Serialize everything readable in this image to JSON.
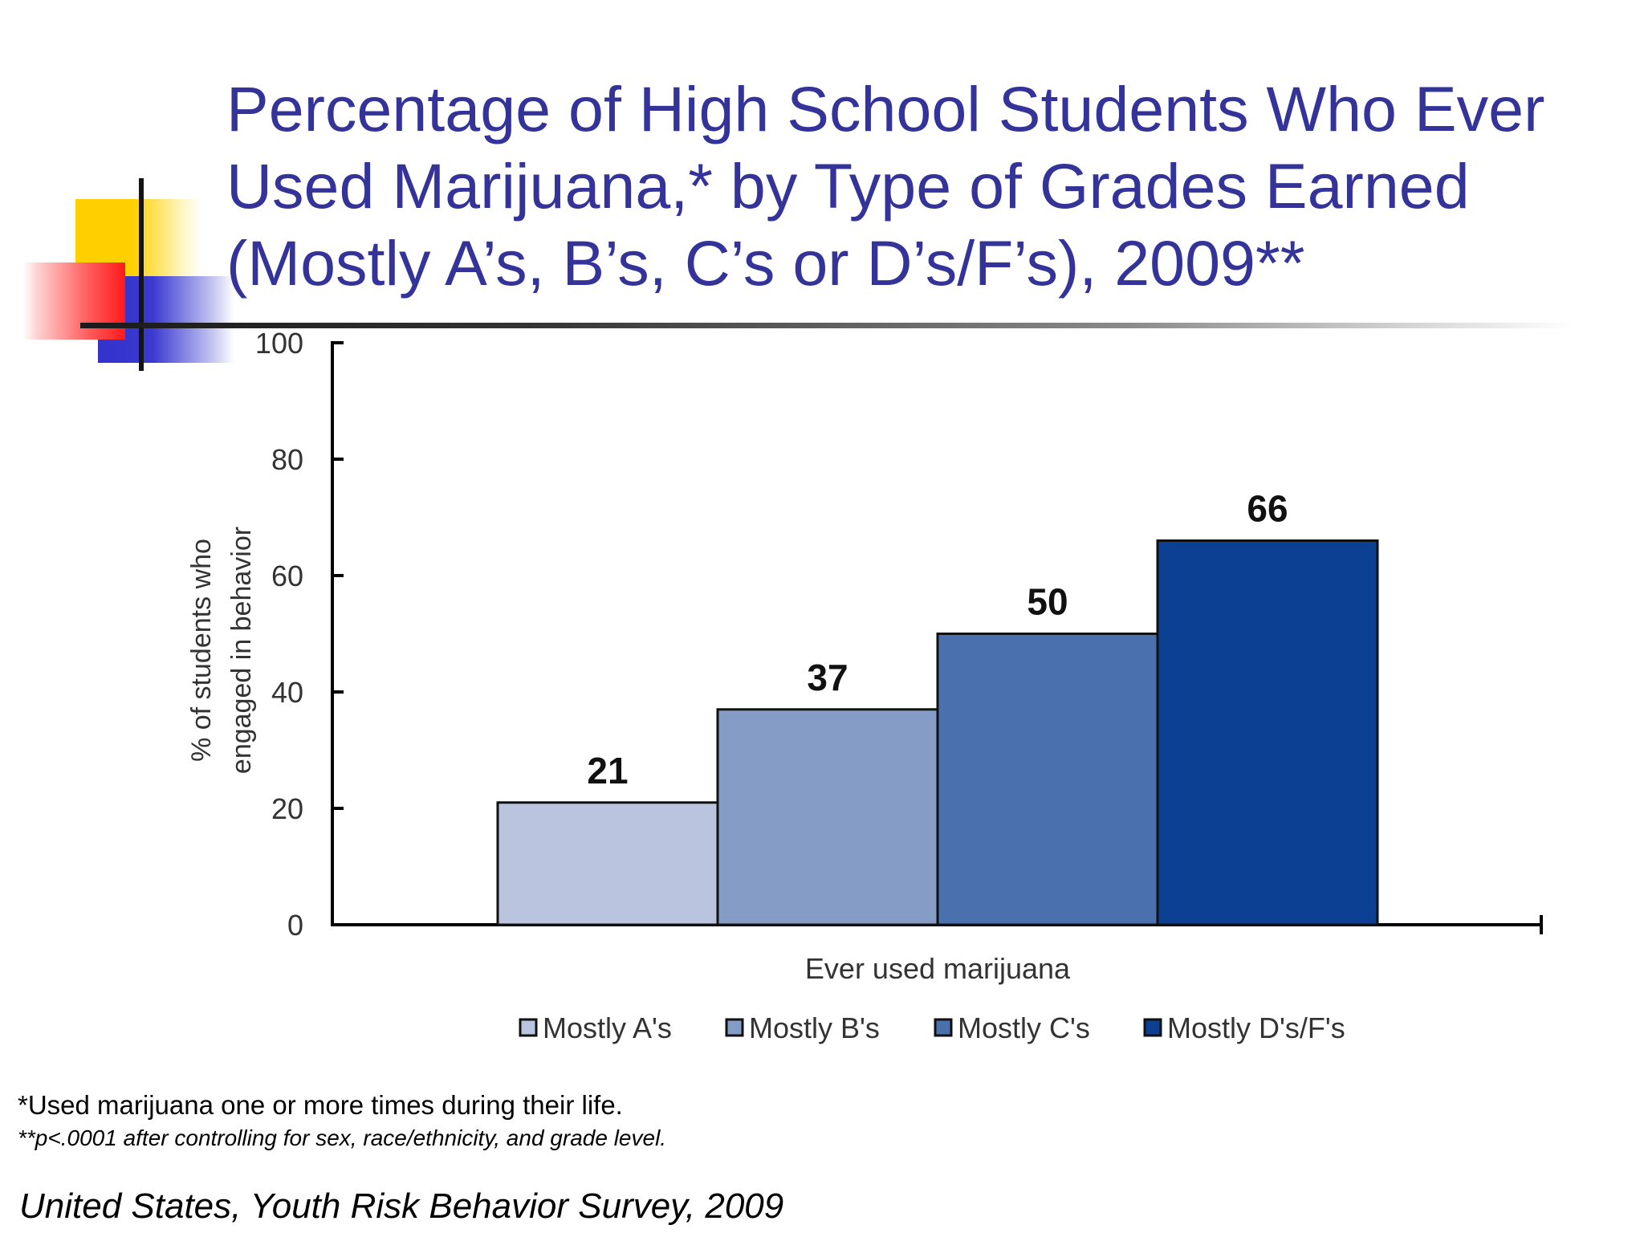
{
  "slide": {
    "title": "Percentage of High School Students Who Ever\nUsed Marijuana,* by Type of Grades Earned\n(Mostly A’s, B’s, C’s or D’s/F’s), 2009**",
    "footnote_1": "*Used marijuana one or more times during their life.",
    "footnote_2": "**p<.0001 after controlling for sex, race/ethnicity, and grade level.",
    "source": "United States, Youth Risk Behavior Survey, 2009"
  },
  "chart_data": {
    "type": "bar",
    "title": "",
    "categories": [
      "Ever used marijuana"
    ],
    "xlabel": "",
    "ylabel": "% of students who engaged in behavior",
    "ylabel_lines": [
      "% of students who",
      "engaged in behavior"
    ],
    "ylim": [
      0,
      100
    ],
    "yticks": [
      0,
      20,
      40,
      60,
      80,
      100
    ],
    "legend_position": "bottom",
    "series": [
      {
        "name": "Mostly A's",
        "values": [
          21
        ],
        "color": "#bbc4de"
      },
      {
        "name": "Mostly B's",
        "values": [
          37
        ],
        "color": "#859dc6"
      },
      {
        "name": "Mostly C's",
        "values": [
          50
        ],
        "color": "#4a70ae"
      },
      {
        "name": "Mostly D's/F's",
        "values": [
          66
        ],
        "color": "#0c4092"
      }
    ]
  }
}
